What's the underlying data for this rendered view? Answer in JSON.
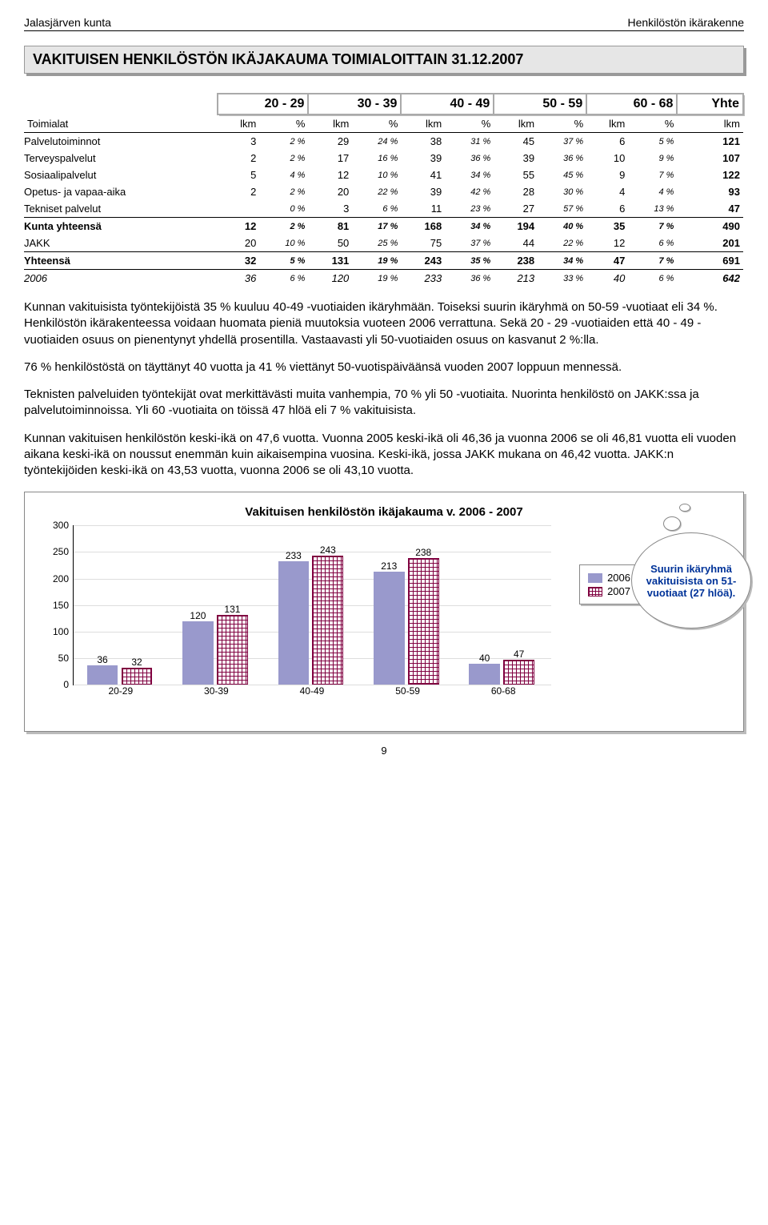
{
  "header": {
    "left": "Jalasjärven kunta",
    "right": "Henkilöstön ikärakenne"
  },
  "title": "VAKITUISEN  HENKILÖSTÖN  IKÄJAKAUMA  TOIMIALOITTAIN  31.12.2007",
  "age_groups": [
    "20 - 29",
    "30 - 39",
    "40 - 49",
    "50 - 59",
    "60 - 68",
    "Yhte"
  ],
  "sub_headers": {
    "toimialat": "Toimialat",
    "lkm": "lkm",
    "pct": "%"
  },
  "rows": [
    {
      "label": "Palvelutoiminnot",
      "cells": [
        [
          3,
          "2 %"
        ],
        [
          29,
          "24 %"
        ],
        [
          38,
          "31 %"
        ],
        [
          45,
          "37 %"
        ],
        [
          6,
          "5 %"
        ]
      ],
      "total": 121
    },
    {
      "label": "Terveyspalvelut",
      "cells": [
        [
          2,
          "2 %"
        ],
        [
          17,
          "16 %"
        ],
        [
          39,
          "36 %"
        ],
        [
          39,
          "36 %"
        ],
        [
          10,
          "9 %"
        ]
      ],
      "total": 107
    },
    {
      "label": "Sosiaalipalvelut",
      "cells": [
        [
          5,
          "4 %"
        ],
        [
          12,
          "10 %"
        ],
        [
          41,
          "34 %"
        ],
        [
          55,
          "45 %"
        ],
        [
          9,
          "7 %"
        ]
      ],
      "total": 122
    },
    {
      "label": "Opetus- ja vapaa-aika",
      "cells": [
        [
          2,
          "2 %"
        ],
        [
          20,
          "22 %"
        ],
        [
          39,
          "42 %"
        ],
        [
          28,
          "30 %"
        ],
        [
          4,
          "4 %"
        ]
      ],
      "total": 93
    },
    {
      "label": "Tekniset palvelut",
      "cells": [
        [
          "",
          "0 %"
        ],
        [
          3,
          "6 %"
        ],
        [
          11,
          "23 %"
        ],
        [
          27,
          "57 %"
        ],
        [
          6,
          "13 %"
        ]
      ],
      "total": 47
    }
  ],
  "kunta": {
    "label": "Kunta yhteensä",
    "cells": [
      [
        12,
        "2 %"
      ],
      [
        81,
        "17 %"
      ],
      [
        168,
        "34 %"
      ],
      [
        194,
        "40 %"
      ],
      [
        35,
        "7 %"
      ]
    ],
    "total": 490
  },
  "jakk": {
    "label": "JAKK",
    "cells": [
      [
        20,
        "10 %"
      ],
      [
        50,
        "25 %"
      ],
      [
        75,
        "37 %"
      ],
      [
        44,
        "22 %"
      ],
      [
        12,
        "6 %"
      ]
    ],
    "total": 201
  },
  "yht": {
    "label": "Yhteensä",
    "cells": [
      [
        32,
        "5 %"
      ],
      [
        131,
        "19 %"
      ],
      [
        243,
        "35 %"
      ],
      [
        238,
        "34 %"
      ],
      [
        47,
        "7 %"
      ]
    ],
    "total": 691
  },
  "y2006": {
    "label": "2006",
    "cells": [
      [
        36,
        "6 %"
      ],
      [
        120,
        "19 %"
      ],
      [
        233,
        "36 %"
      ],
      [
        213,
        "33 %"
      ],
      [
        40,
        "6 %"
      ]
    ],
    "total": 642
  },
  "paragraphs": [
    "Kunnan vakituisista työntekijöistä 35 % kuuluu 40-49 -vuotiaiden ikäryhmään. Toiseksi suurin ikäryhmä on 50-59 -vuotiaat eli 34 %. Henkilöstön ikärakenteessa voidaan huomata pieniä muutoksia vuoteen 2006 verrattuna. Sekä 20 - 29 -vuotiaiden  että 40 - 49 -vuotiaiden osuus on pienentynyt yhdellä prosentilla. Vastaavasti yli 50-vuotiaiden osuus on kasvanut 2 %:lla.",
    "76 % henkilöstöstä on täyttänyt 40 vuotta ja 41 % viettänyt  50-vuotispäiväänsä vuoden 2007 loppuun mennessä.",
    "Teknisten palveluiden työntekijät ovat merkittävästi muita vanhempia, 70 %  yli 50 -vuotiaita. Nuorinta henkilöstö on JAKK:ssa ja palvelutoiminnoissa. Yli 60 -vuotiaita on töissä 47 hlöä eli 7 % vakituisista.",
    "Kunnan vakituisen henkilöstön keski-ikä on 47,6 vuotta.  Vuonna 2005 keski-ikä oli 46,36 ja vuonna 2006 se oli 46,81 vuotta eli vuoden aikana keski-ikä on noussut enemmän kuin aikaisempina vuosina.  Keski-ikä, jossa JAKK mukana on 46,42 vuotta. JAKK:n työntekijöiden keski-ikä on 43,53 vuotta, vuonna 2006 se oli 43,10 vuotta."
  ],
  "chart": {
    "title": "Vakituisen henkilöstön ikäjakauma v. 2006 - 2007",
    "categories": [
      "20-29",
      "30-39",
      "40-49",
      "50-59",
      "60-68"
    ],
    "series": [
      {
        "name": "2006",
        "values": [
          36,
          120,
          233,
          213,
          40
        ]
      },
      {
        "name": "2007",
        "values": [
          32,
          131,
          243,
          238,
          47
        ]
      }
    ],
    "ylim": [
      0,
      300
    ],
    "ytick_step": 50,
    "colors": {
      "s2006": "#9999cc",
      "s2007_line": "#800040"
    }
  },
  "callout": "Suurin ikäryhmä vakituisista on 51-vuotiaat (27 hlöä).",
  "page_number": "9"
}
